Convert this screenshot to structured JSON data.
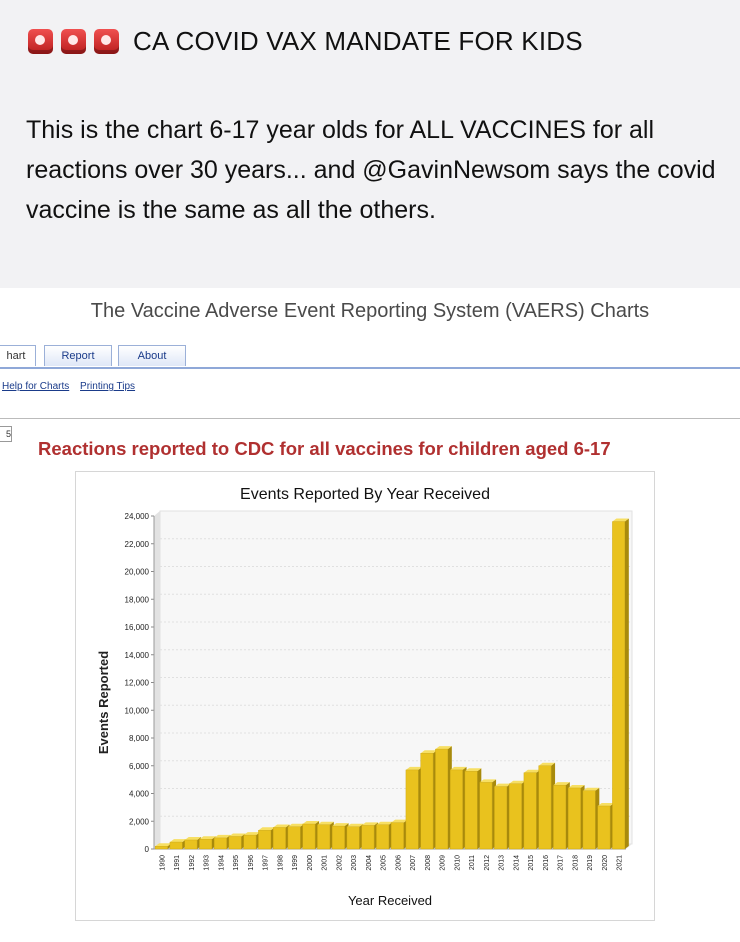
{
  "post": {
    "headline": "CA COVID VAX MANDATE FOR KIDS",
    "headline_icons": [
      "siren-icon",
      "siren-icon",
      "siren-icon"
    ],
    "body": "This is the chart 6-17 year olds for ALL VACCINES for all reactions over 30 years... and @GavinNewsom says the covid vaccine is the same as all the others."
  },
  "site": {
    "title": "The Vaccine Adverse Event Reporting System (VAERS) Charts",
    "tabs": [
      "hart",
      "Report",
      "About"
    ],
    "links": [
      "Help for Charts",
      "Printing Tips"
    ],
    "box_char": "5"
  },
  "chart_heading": "Reactions reported to CDC for all vaccines for children aged 6-17",
  "chart_data": {
    "type": "bar",
    "title": "Events Reported By Year Received",
    "xlabel": "Year Received",
    "ylabel": "Events Reported",
    "ylim": [
      0,
      24000
    ],
    "yticks": [
      0,
      2000,
      4000,
      6000,
      8000,
      10000,
      12000,
      14000,
      16000,
      18000,
      20000,
      22000,
      24000
    ],
    "ytick_labels": [
      "0",
      "2,000",
      "4,000",
      "6,000",
      "8,000",
      "10,000",
      "12,000",
      "14,000",
      "16,000",
      "18,000",
      "20,000",
      "22,000",
      "24,000"
    ],
    "categories": [
      "1990",
      "1991",
      "1992",
      "1993",
      "1994",
      "1995",
      "1996",
      "1997",
      "1998",
      "1999",
      "2000",
      "2001",
      "2002",
      "2003",
      "2004",
      "2005",
      "2006",
      "2007",
      "2008",
      "2009",
      "2010",
      "2011",
      "2012",
      "2013",
      "2014",
      "2015",
      "2016",
      "2017",
      "2018",
      "2019",
      "2020",
      "2021"
    ],
    "values": [
      200,
      500,
      650,
      700,
      800,
      900,
      1000,
      1350,
      1550,
      1600,
      1800,
      1750,
      1650,
      1600,
      1700,
      1750,
      1900,
      5700,
      6900,
      7200,
      5700,
      5600,
      4800,
      4500,
      4700,
      5500,
      6000,
      4600,
      4400,
      4200,
      3100,
      23600
    ],
    "grid": true,
    "bar_color": "#e9c21e"
  }
}
